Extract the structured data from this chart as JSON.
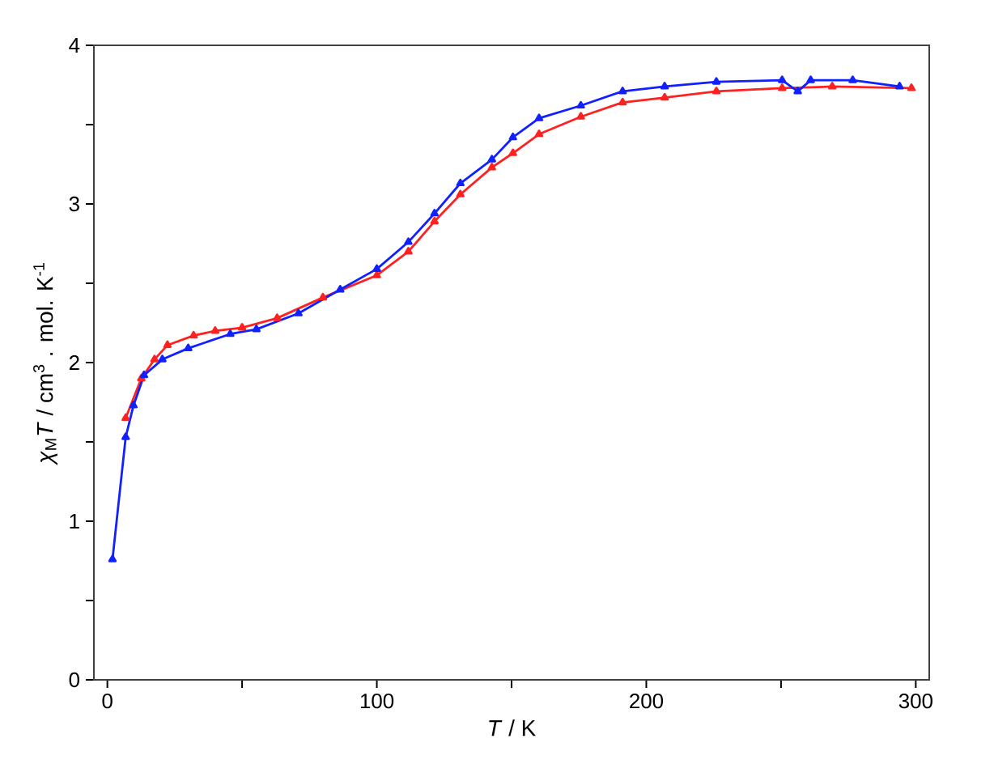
{
  "chart_data": {
    "type": "line",
    "xlabel": "*T* / K",
    "ylabel": "*χ*$_{M}$*T* / cm$^{3}$ . mol. K$^{-1}$",
    "xlim": [
      -5,
      305
    ],
    "ylim": [
      0,
      4
    ],
    "xticks": [
      0,
      {
        "value": 50,
        "label": null
      },
      100,
      {
        "value": 150,
        "label": null
      },
      200,
      {
        "value": 250,
        "label": null
      },
      300
    ],
    "yticks": [
      0,
      {
        "value": 0.5,
        "label": null
      },
      1,
      {
        "value": 1.5,
        "label": null
      },
      2,
      {
        "value": 2.5,
        "label": null
      },
      3,
      {
        "value": 3.5,
        "label": null
      },
      4
    ],
    "grid": false,
    "marker": "triangle",
    "line_style": "solid",
    "series": [
      {
        "color": "#ff2020",
        "x": [
          6.8,
          12.6,
          17.5,
          22.3,
          32,
          40,
          50,
          63,
          80,
          100,
          111.7,
          121.4,
          131,
          142.7,
          150.5,
          160.2,
          175.7,
          191.2,
          206.8,
          226,
          250.4,
          269,
          298.4
        ],
        "values": [
          1.65,
          1.9,
          2.02,
          2.11,
          2.17,
          2.2,
          2.22,
          2.28,
          2.41,
          2.55,
          2.7,
          2.89,
          3.06,
          3.23,
          3.32,
          3.44,
          3.55,
          3.64,
          3.67,
          3.71,
          3.73,
          3.74,
          3.73
        ]
      },
      {
        "color": "#1020ff",
        "x": [
          1.9,
          6.8,
          9.7,
          13.6,
          20.4,
          30,
          45.6,
          55.3,
          70.9,
          86.4,
          100,
          111.7,
          121.4,
          131,
          142.7,
          150.5,
          160.2,
          175.7,
          191.2,
          206.8,
          226,
          250.4,
          256.2,
          261,
          276.6,
          294
        ],
        "values": [
          0.76,
          1.53,
          1.73,
          1.92,
          2.02,
          2.09,
          2.18,
          2.21,
          2.31,
          2.46,
          2.59,
          2.76,
          2.94,
          3.13,
          3.28,
          3.42,
          3.54,
          3.62,
          3.71,
          3.74,
          3.77,
          3.78,
          3.71,
          3.78,
          3.78,
          3.74
        ]
      }
    ]
  }
}
